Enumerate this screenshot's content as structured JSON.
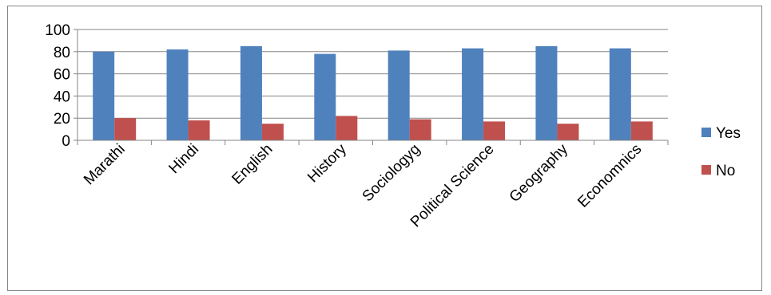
{
  "chart_data": {
    "type": "bar",
    "title": "",
    "xlabel": "",
    "ylabel": "",
    "categories": [
      "Marathi",
      "Hindi",
      "English",
      "History",
      "Sociologyg",
      "Political Science",
      "Geography",
      "Economnics"
    ],
    "series": [
      {
        "name": "Yes",
        "color": "#4f81bd",
        "values": [
          80,
          82,
          85,
          78,
          81,
          83,
          85,
          83
        ]
      },
      {
        "name": "No",
        "color": "#c0504d",
        "values": [
          20,
          18,
          15,
          22,
          19,
          17,
          15,
          17
        ]
      }
    ],
    "ylim": [
      0,
      100
    ],
    "yticks": [
      0,
      20,
      40,
      60,
      80,
      100
    ],
    "grid": true,
    "legend": "right"
  }
}
